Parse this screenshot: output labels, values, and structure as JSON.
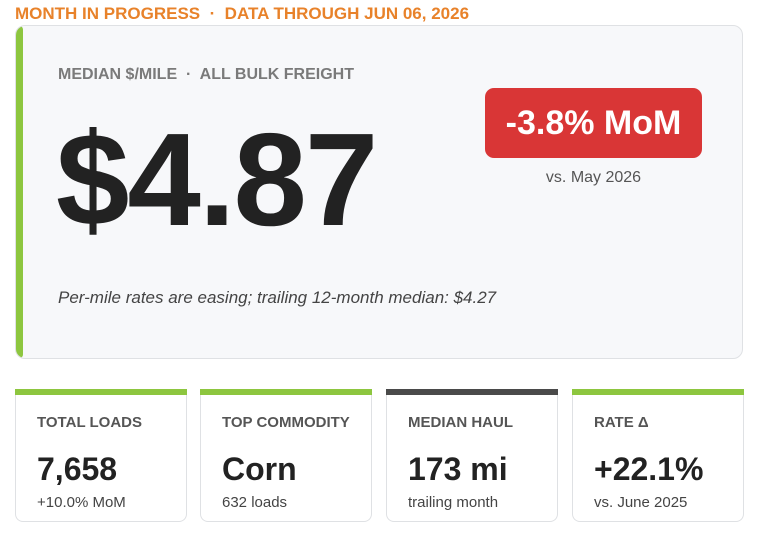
{
  "header": {
    "title": "MONTH IN PROGRESS  ·  DATA THROUGH JUN 06, 2026"
  },
  "hero": {
    "label": "MEDIAN $/MILE  ·  ALL BULK FREIGHT",
    "value": "$4.87",
    "badge": "-3.8% MoM",
    "badge_note": "vs. May 2026",
    "note": "Per-mile rates are easing; trailing 12-month median: $4.27"
  },
  "cards": [
    {
      "label": "TOTAL LOADS",
      "value": "7,658",
      "sub": "+10.0% MoM"
    },
    {
      "label": "TOP COMMODITY",
      "value": "Corn",
      "sub": "632 loads"
    },
    {
      "label": "MEDIAN HAUL",
      "value": "173 mi",
      "sub": "trailing month"
    },
    {
      "label": "RATE Δ",
      "value": "+22.1%",
      "sub": "vs. June 2025"
    }
  ]
}
